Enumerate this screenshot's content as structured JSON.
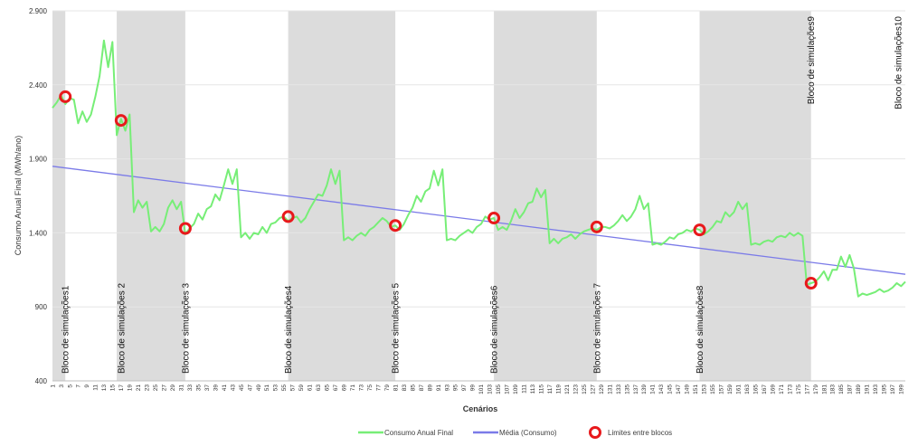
{
  "chart_data": {
    "type": "line",
    "title": "",
    "xlabel": "Cenários",
    "ylabel": "Consumo Anual Final (MWh/ano)",
    "ylim": [
      400,
      2900
    ],
    "yticks": [
      400,
      900,
      1400,
      1900,
      2400,
      2900
    ],
    "ytick_labels": [
      "400",
      "900",
      "1.400",
      "1.900",
      "2.400",
      "2.900"
    ],
    "xlim": [
      1,
      200
    ],
    "xtick_labels": [
      "1",
      "3",
      "5",
      "7",
      "9",
      "11",
      "13",
      "15",
      "17",
      "19",
      "21",
      "23",
      "25",
      "27",
      "29",
      "31",
      "33",
      "35",
      "37",
      "39",
      "41",
      "43",
      "45",
      "47",
      "49",
      "51",
      "53",
      "55",
      "57",
      "59",
      "61",
      "63",
      "65",
      "67",
      "69",
      "71",
      "73",
      "75",
      "77",
      "79",
      "81",
      "83",
      "85",
      "87",
      "89",
      "91",
      "93",
      "95",
      "97",
      "99",
      "101",
      "103",
      "105",
      "107",
      "109",
      "111",
      "113",
      "115",
      "117",
      "119",
      "121",
      "123",
      "125",
      "127",
      "129",
      "131",
      "133",
      "135",
      "137",
      "139",
      "141",
      "143",
      "145",
      "147",
      "149",
      "151",
      "153",
      "155",
      "157",
      "159",
      "161",
      "163",
      "165",
      "167",
      "169",
      "171",
      "173",
      "175",
      "177",
      "179",
      "181",
      "183",
      "185",
      "187",
      "189",
      "191",
      "193",
      "195",
      "197",
      "199"
    ],
    "grid": true,
    "legend_position": "bottom",
    "series": [
      {
        "name": "Consumo Anual Final",
        "color": "#77ee77",
        "points": [
          [
            1,
            2245
          ],
          [
            2,
            2280
          ],
          [
            3,
            2330
          ],
          [
            4,
            2270
          ],
          [
            5,
            2310
          ],
          [
            6,
            2300
          ],
          [
            7,
            2140
          ],
          [
            8,
            2220
          ],
          [
            9,
            2150
          ],
          [
            10,
            2200
          ],
          [
            11,
            2320
          ],
          [
            12,
            2460
          ],
          [
            13,
            2700
          ],
          [
            14,
            2520
          ],
          [
            15,
            2690
          ],
          [
            16,
            2060
          ],
          [
            17,
            2170
          ],
          [
            18,
            2090
          ],
          [
            19,
            2200
          ],
          [
            20,
            1540
          ],
          [
            21,
            1620
          ],
          [
            22,
            1570
          ],
          [
            23,
            1610
          ],
          [
            24,
            1410
          ],
          [
            25,
            1440
          ],
          [
            26,
            1410
          ],
          [
            27,
            1460
          ],
          [
            28,
            1570
          ],
          [
            29,
            1620
          ],
          [
            30,
            1560
          ],
          [
            31,
            1610
          ],
          [
            32,
            1390
          ],
          [
            33,
            1430
          ],
          [
            34,
            1460
          ],
          [
            35,
            1530
          ],
          [
            36,
            1490
          ],
          [
            37,
            1560
          ],
          [
            38,
            1580
          ],
          [
            39,
            1660
          ],
          [
            40,
            1620
          ],
          [
            41,
            1720
          ],
          [
            42,
            1830
          ],
          [
            43,
            1730
          ],
          [
            44,
            1830
          ],
          [
            45,
            1370
          ],
          [
            46,
            1400
          ],
          [
            47,
            1360
          ],
          [
            48,
            1400
          ],
          [
            49,
            1390
          ],
          [
            50,
            1440
          ],
          [
            51,
            1400
          ],
          [
            52,
            1460
          ],
          [
            53,
            1470
          ],
          [
            54,
            1500
          ],
          [
            55,
            1510
          ],
          [
            56,
            1480
          ],
          [
            57,
            1500
          ],
          [
            58,
            1510
          ],
          [
            59,
            1470
          ],
          [
            60,
            1500
          ],
          [
            61,
            1560
          ],
          [
            62,
            1610
          ],
          [
            63,
            1660
          ],
          [
            64,
            1650
          ],
          [
            65,
            1720
          ],
          [
            66,
            1830
          ],
          [
            67,
            1730
          ],
          [
            68,
            1820
          ],
          [
            69,
            1350
          ],
          [
            70,
            1370
          ],
          [
            71,
            1350
          ],
          [
            72,
            1380
          ],
          [
            73,
            1400
          ],
          [
            74,
            1380
          ],
          [
            75,
            1420
          ],
          [
            76,
            1440
          ],
          [
            77,
            1470
          ],
          [
            78,
            1500
          ],
          [
            79,
            1480
          ],
          [
            80,
            1440
          ],
          [
            81,
            1450
          ],
          [
            82,
            1420
          ],
          [
            83,
            1460
          ],
          [
            84,
            1520
          ],
          [
            85,
            1570
          ],
          [
            86,
            1650
          ],
          [
            87,
            1610
          ],
          [
            88,
            1680
          ],
          [
            89,
            1700
          ],
          [
            90,
            1820
          ],
          [
            91,
            1720
          ],
          [
            92,
            1830
          ],
          [
            93,
            1350
          ],
          [
            94,
            1360
          ],
          [
            95,
            1350
          ],
          [
            96,
            1380
          ],
          [
            97,
            1400
          ],
          [
            98,
            1420
          ],
          [
            99,
            1400
          ],
          [
            100,
            1440
          ],
          [
            101,
            1460
          ],
          [
            102,
            1510
          ],
          [
            103,
            1490
          ],
          [
            104,
            1500
          ],
          [
            105,
            1420
          ],
          [
            106,
            1440
          ],
          [
            107,
            1420
          ],
          [
            108,
            1480
          ],
          [
            109,
            1560
          ],
          [
            110,
            1500
          ],
          [
            111,
            1540
          ],
          [
            112,
            1600
          ],
          [
            113,
            1610
          ],
          [
            114,
            1700
          ],
          [
            115,
            1640
          ],
          [
            116,
            1690
          ],
          [
            117,
            1330
          ],
          [
            118,
            1360
          ],
          [
            119,
            1330
          ],
          [
            120,
            1360
          ],
          [
            121,
            1370
          ],
          [
            122,
            1390
          ],
          [
            123,
            1360
          ],
          [
            124,
            1390
          ],
          [
            125,
            1410
          ],
          [
            126,
            1420
          ],
          [
            127,
            1430
          ],
          [
            128,
            1420
          ],
          [
            129,
            1440
          ],
          [
            130,
            1440
          ],
          [
            131,
            1430
          ],
          [
            132,
            1450
          ],
          [
            133,
            1480
          ],
          [
            134,
            1520
          ],
          [
            135,
            1480
          ],
          [
            136,
            1510
          ],
          [
            137,
            1560
          ],
          [
            138,
            1650
          ],
          [
            139,
            1560
          ],
          [
            140,
            1600
          ],
          [
            141,
            1320
          ],
          [
            142,
            1330
          ],
          [
            143,
            1320
          ],
          [
            144,
            1340
          ],
          [
            145,
            1370
          ],
          [
            146,
            1360
          ],
          [
            147,
            1390
          ],
          [
            148,
            1400
          ],
          [
            149,
            1420
          ],
          [
            150,
            1410
          ],
          [
            151,
            1430
          ],
          [
            152,
            1420
          ],
          [
            153,
            1390
          ],
          [
            154,
            1410
          ],
          [
            155,
            1440
          ],
          [
            156,
            1480
          ],
          [
            157,
            1470
          ],
          [
            158,
            1540
          ],
          [
            159,
            1510
          ],
          [
            160,
            1540
          ],
          [
            161,
            1610
          ],
          [
            162,
            1560
          ],
          [
            163,
            1600
          ],
          [
            164,
            1320
          ],
          [
            165,
            1330
          ],
          [
            166,
            1320
          ],
          [
            167,
            1340
          ],
          [
            168,
            1350
          ],
          [
            169,
            1340
          ],
          [
            170,
            1370
          ],
          [
            171,
            1380
          ],
          [
            172,
            1370
          ],
          [
            173,
            1400
          ],
          [
            174,
            1380
          ],
          [
            175,
            1400
          ],
          [
            176,
            1380
          ],
          [
            177,
            1050
          ],
          [
            178,
            1060
          ],
          [
            179,
            1070
          ],
          [
            180,
            1100
          ],
          [
            181,
            1140
          ],
          [
            182,
            1080
          ],
          [
            183,
            1150
          ],
          [
            184,
            1150
          ],
          [
            185,
            1240
          ],
          [
            186,
            1170
          ],
          [
            187,
            1250
          ],
          [
            188,
            1160
          ],
          [
            189,
            970
          ],
          [
            190,
            990
          ],
          [
            191,
            980
          ],
          [
            192,
            990
          ],
          [
            193,
            1000
          ],
          [
            194,
            1020
          ],
          [
            195,
            1000
          ],
          [
            196,
            1010
          ],
          [
            197,
            1030
          ],
          [
            198,
            1060
          ],
          [
            199,
            1040
          ],
          [
            200,
            1070
          ]
        ]
      },
      {
        "name": "Média (Consumo)",
        "color": "#7b7be8",
        "points": [
          [
            1,
            1850
          ],
          [
            200,
            1120
          ]
        ]
      },
      {
        "name": "Limites entre blocos",
        "type": "scatter",
        "color": "#e8191c",
        "points": [
          [
            4,
            2320
          ],
          [
            17,
            2160
          ],
          [
            32,
            1430
          ],
          [
            56,
            1510
          ],
          [
            81,
            1450
          ],
          [
            104,
            1500
          ],
          [
            128,
            1440
          ],
          [
            152,
            1420
          ],
          [
            178,
            1060
          ]
        ]
      }
    ],
    "shaded_bands": [
      [
        1,
        4
      ],
      [
        16,
        32
      ],
      [
        56,
        81
      ],
      [
        104,
        128
      ],
      [
        152,
        178
      ]
    ],
    "block_labels": [
      {
        "text": "Bloco de simulações1",
        "x": 4,
        "position": "bottom"
      },
      {
        "text": "Bloco de simulações 2",
        "x": 17,
        "position": "bottom"
      },
      {
        "text": "Bloco de simulações 3",
        "x": 32,
        "position": "bottom"
      },
      {
        "text": "Bloco de simulações4",
        "x": 56,
        "position": "bottom"
      },
      {
        "text": "Bloco de simulações 5",
        "x": 81,
        "position": "bottom"
      },
      {
        "text": "Bloco de simulações6",
        "x": 104,
        "position": "bottom"
      },
      {
        "text": "Bloco de simulações 7",
        "x": 128,
        "position": "bottom"
      },
      {
        "text": "Bloco de simulações8",
        "x": 152,
        "position": "bottom"
      },
      {
        "text": "Bloco de simulações9",
        "x": 178,
        "position": "top"
      },
      {
        "text": "Bloco de simulações10",
        "x": 200,
        "position": "top"
      }
    ],
    "legend": [
      {
        "label": "Consumo Anual Final",
        "kind": "line",
        "color": "#77ee77"
      },
      {
        "label": "Média (Consumo)",
        "kind": "line",
        "color": "#7b7be8"
      },
      {
        "label": "Limites entre blocos",
        "kind": "circle",
        "color": "#e8191c"
      }
    ]
  }
}
